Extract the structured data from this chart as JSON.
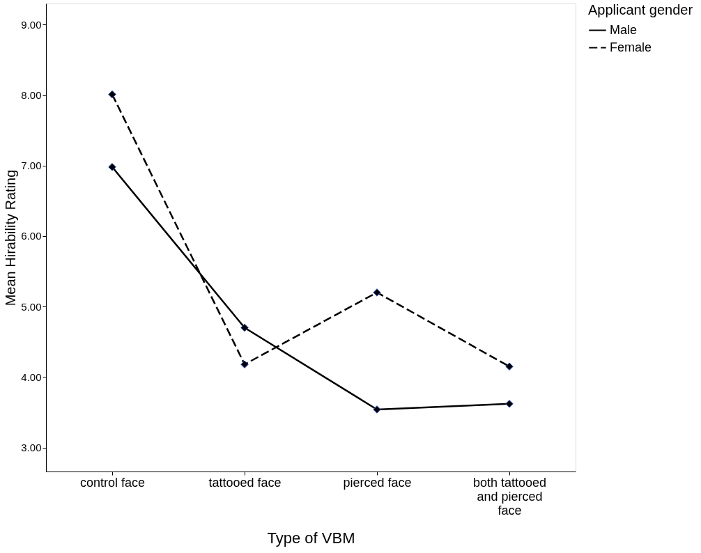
{
  "chart_data": {
    "type": "line",
    "xlabel": "Type of VBM",
    "ylabel": "Mean Hirability Rating",
    "legend_title": "Applicant gender",
    "categories": [
      "control face",
      "tattooed face",
      "pierced face",
      "both tattooed and pierced face"
    ],
    "series": [
      {
        "name": "Male",
        "color": "#000000",
        "line_style": "solid",
        "values": [
          6.98,
          4.7,
          3.54,
          3.62
        ]
      },
      {
        "name": "Female",
        "color": "#000000",
        "line_style": "dashed",
        "values": [
          8.01,
          4.18,
          5.2,
          4.15
        ]
      }
    ],
    "ylim": [
      2.66,
      9.3
    ],
    "yticks": [
      {
        "value": 3,
        "label": "3.00"
      },
      {
        "value": 4,
        "label": "4.00"
      },
      {
        "value": 5,
        "label": "5.00"
      },
      {
        "value": 6,
        "label": "6.00"
      },
      {
        "value": 7,
        "label": "7.00"
      },
      {
        "value": 8,
        "label": "8.00"
      },
      {
        "value": 9,
        "label": "9.00"
      }
    ],
    "grid": false,
    "legend": "top right",
    "marker": "diamond"
  }
}
